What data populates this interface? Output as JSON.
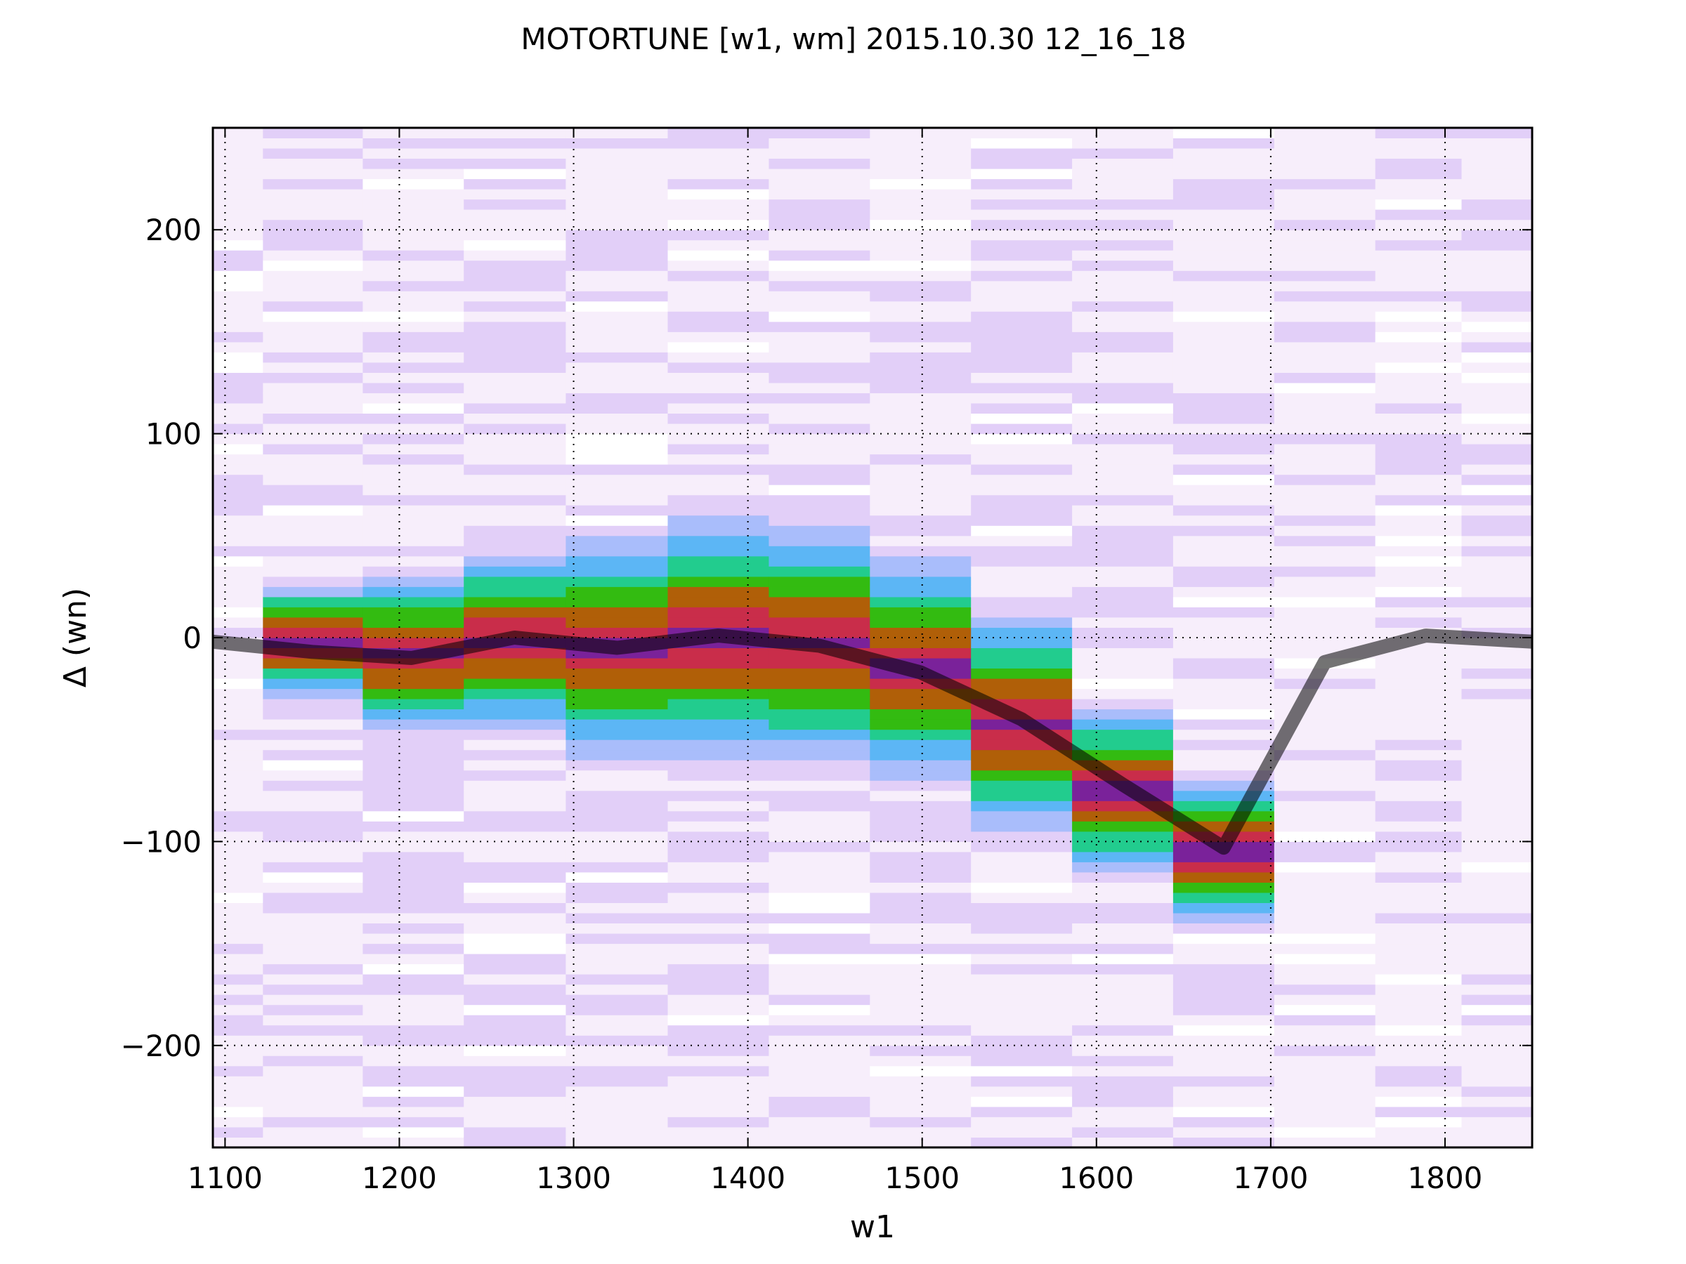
{
  "chart_data": {
    "type": "heatmap",
    "title": "MOTORTUNE [w1, wm] 2015.10.30 12_16_18",
    "xlabel": "w1",
    "ylabel": "Δ (wn)",
    "xlim": [
      1093,
      1850
    ],
    "ylim": [
      -250,
      250
    ],
    "x_ticks": [
      1100,
      1200,
      1300,
      1400,
      1500,
      1600,
      1700,
      1800
    ],
    "y_ticks": [
      -200,
      -100,
      0,
      100,
      200
    ],
    "x_tick_labels": [
      "1100",
      "1200",
      "1300",
      "1400",
      "1500",
      "1600",
      "1700",
      "1800"
    ],
    "y_tick_labels": [
      "−200",
      "−100",
      "0",
      "100",
      "200"
    ],
    "grid": true,
    "heatmap_columns": [
      {
        "w1": 1093.5,
        "center": 0,
        "width": 0
      },
      {
        "w1": 1150,
        "center": -2,
        "width": 16
      },
      {
        "w1": 1208,
        "center": -8,
        "width": 22
      },
      {
        "w1": 1266,
        "center": -2,
        "width": 24
      },
      {
        "w1": 1325,
        "center": -5,
        "width": 30
      },
      {
        "w1": 1383,
        "center": 0,
        "width": 33
      },
      {
        "w1": 1441,
        "center": -3,
        "width": 32
      },
      {
        "w1": 1499,
        "center": -15,
        "width": 30
      },
      {
        "w1": 1557,
        "center": -42,
        "width": 30
      },
      {
        "w1": 1615,
        "center": -75,
        "width": 23
      },
      {
        "w1": 1673,
        "center": -105,
        "width": 20
      },
      {
        "w1": 1731,
        "center": 0,
        "width": 0
      },
      {
        "w1": 1789,
        "center": 0,
        "width": 0
      },
      {
        "w1": 1830,
        "center": 0,
        "width": 0
      }
    ],
    "series": [
      {
        "x": [
          1093,
          1150,
          1207,
          1266,
          1325,
          1383,
          1441,
          1499,
          1557,
          1615,
          1673,
          1731,
          1789,
          1850
        ],
        "y": [
          -2,
          -7,
          -10,
          0,
          -5,
          1,
          -4,
          -17,
          -40,
          -72,
          -103,
          -12,
          1,
          -2
        ]
      }
    ],
    "colormap": [
      "#f7eefb",
      "#e2cff8",
      "#a9bdfb",
      "#5cb6f5",
      "#22cc8e",
      "#33bb11",
      "#b05f08",
      "#c92d4a",
      "#7a229a"
    ]
  }
}
